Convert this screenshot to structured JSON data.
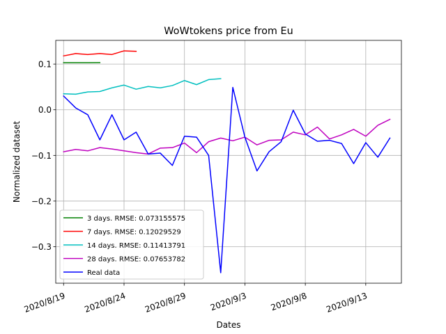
{
  "chart_data": {
    "type": "line",
    "title": "WoWtokens price from Eu",
    "xlabel": "Dates",
    "ylabel": "Normalized dataset",
    "x_start": "2020/8/19",
    "x_end": "2020/9/15",
    "xlim": [
      "2020/8/18.35",
      "2020/9/15.95"
    ],
    "ylim": [
      -0.38,
      0.152
    ],
    "grid": true,
    "legend_position": "lower-left",
    "x_ticks": [
      {
        "label": "2020/8/19",
        "x": "2020/8/19"
      },
      {
        "label": "2020/8/24",
        "x": "2020/8/24"
      },
      {
        "label": "2020/8/29",
        "x": "2020/8/29"
      },
      {
        "label": "2020/9/3",
        "x": "2020/9/3"
      },
      {
        "label": "2020/9/8",
        "x": "2020/9/8"
      },
      {
        "label": "2020/9/13",
        "x": "2020/9/13"
      }
    ],
    "y_ticks": [
      {
        "label": "0.1",
        "y": 0.1
      },
      {
        "label": "0.0",
        "y": 0.0
      },
      {
        "label": "−0.1",
        "y": -0.1
      },
      {
        "label": "−0.2",
        "y": -0.2
      },
      {
        "label": "−0.3",
        "y": -0.3
      }
    ],
    "series": [
      {
        "name": "3 days. RMSE: 0.073155575",
        "color": "#008000",
        "x": [
          "2020/8/19",
          "2020/8/20",
          "2020/8/21",
          "2020/8/22"
        ],
        "y": [
          0.103,
          0.103,
          0.103,
          0.1032
        ]
      },
      {
        "name": "7 days. RMSE: 0.12029529",
        "color": "#ff0000",
        "x": [
          "2020/8/19",
          "2020/8/20",
          "2020/8/21",
          "2020/8/22",
          "2020/8/23",
          "2020/8/24",
          "2020/8/25"
        ],
        "y": [
          0.118,
          0.123,
          0.121,
          0.123,
          0.121,
          0.129,
          0.128
        ]
      },
      {
        "name": "14 days. RMSE: 0.11413791",
        "color": "#00bfbf",
        "x": [
          "2020/8/19",
          "2020/8/20",
          "2020/8/21",
          "2020/8/22",
          "2020/8/23",
          "2020/8/24",
          "2020/8/25",
          "2020/8/26",
          "2020/8/27",
          "2020/8/28",
          "2020/8/29",
          "2020/8/30",
          "2020/8/31",
          "2020/9/1"
        ],
        "y": [
          0.035,
          0.034,
          0.039,
          0.04,
          0.048,
          0.054,
          0.045,
          0.051,
          0.048,
          0.053,
          0.064,
          0.055,
          0.066,
          0.068
        ]
      },
      {
        "name": "28 days. RMSE: 0.07653782",
        "color": "#bf00bf",
        "x": [
          "2020/8/19",
          "2020/8/20",
          "2020/8/21",
          "2020/8/22",
          "2020/8/23",
          "2020/8/24",
          "2020/8/25",
          "2020/8/26",
          "2020/8/27",
          "2020/8/28",
          "2020/8/29",
          "2020/8/30",
          "2020/8/31",
          "2020/9/1",
          "2020/9/2",
          "2020/9/3",
          "2020/9/4",
          "2020/9/5",
          "2020/9/6",
          "2020/9/7",
          "2020/9/8",
          "2020/9/9",
          "2020/9/10",
          "2020/9/11",
          "2020/9/12",
          "2020/9/13",
          "2020/9/14",
          "2020/9/15"
        ],
        "y": [
          -0.092,
          -0.087,
          -0.09,
          -0.083,
          -0.086,
          -0.09,
          -0.094,
          -0.097,
          -0.084,
          -0.083,
          -0.073,
          -0.094,
          -0.07,
          -0.062,
          -0.068,
          -0.06,
          -0.077,
          -0.067,
          -0.066,
          -0.049,
          -0.055,
          -0.038,
          -0.064,
          -0.055,
          -0.043,
          -0.058,
          -0.034,
          -0.021
        ]
      },
      {
        "name": "Real data",
        "color": "#0000ff",
        "x": [
          "2020/8/19",
          "2020/8/20",
          "2020/8/21",
          "2020/8/22",
          "2020/8/23",
          "2020/8/24",
          "2020/8/25",
          "2020/8/26",
          "2020/8/27",
          "2020/8/28",
          "2020/8/29",
          "2020/8/30",
          "2020/8/31",
          "2020/9/1",
          "2020/9/2",
          "2020/9/3",
          "2020/9/4",
          "2020/9/5",
          "2020/9/6",
          "2020/9/7",
          "2020/9/8",
          "2020/9/9",
          "2020/9/10",
          "2020/9/11",
          "2020/9/12",
          "2020/9/13",
          "2020/9/14",
          "2020/9/15"
        ],
        "y": [
          0.03,
          0.004,
          -0.011,
          -0.066,
          -0.011,
          -0.066,
          -0.049,
          -0.097,
          -0.095,
          -0.122,
          -0.058,
          -0.06,
          -0.1,
          -0.357,
          0.049,
          -0.06,
          -0.134,
          -0.092,
          -0.07,
          -0.001,
          -0.053,
          -0.069,
          -0.067,
          -0.074,
          -0.118,
          -0.072,
          -0.104,
          -0.062
        ]
      }
    ]
  }
}
